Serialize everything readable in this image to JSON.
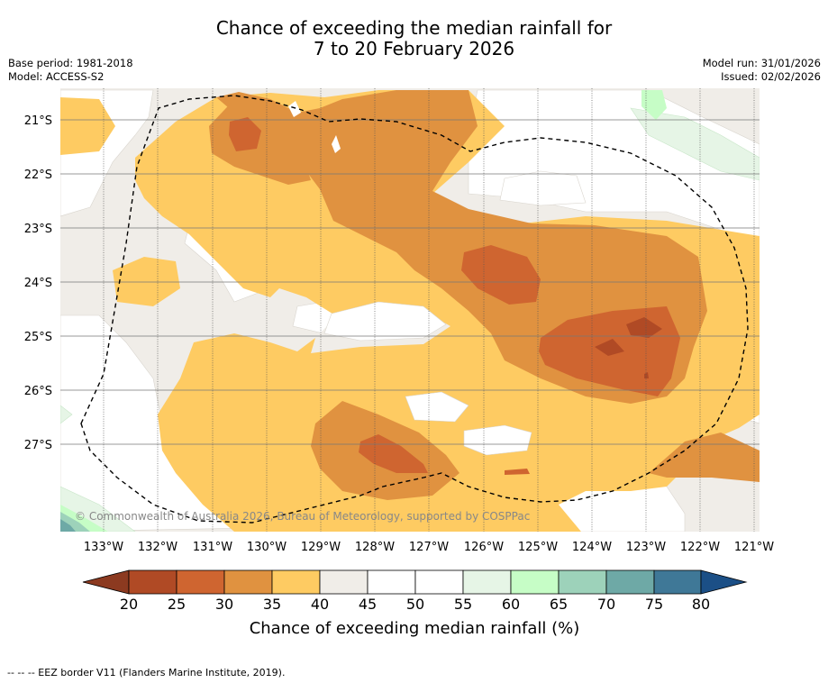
{
  "title_line1": "Chance of exceeding the median rainfall for",
  "title_line2": "7 to 20 February 2026",
  "base_period": "Base period: 1981-2018",
  "model": "Model: ACCESS-S2",
  "model_run": "Model run: 31/01/2026",
  "issued": "Issued: 02/02/2026",
  "copyright": "© Commonwealth of Australia 2026, Bureau of Meteorology, supported by COSPPac",
  "footnote": "--  --  -- EEZ border V11 (Flanders Marine Institute, 2019).",
  "axes": {
    "lat_labels": [
      "21°S",
      "22°S",
      "23°S",
      "24°S",
      "25°S",
      "26°S",
      "27°S"
    ],
    "lon_labels": [
      "133°W",
      "132°W",
      "131°W",
      "130°W",
      "129°W",
      "128°W",
      "127°W",
      "126°W",
      "125°W",
      "124°W",
      "123°W",
      "122°W",
      "121°W"
    ]
  },
  "legend": {
    "title": "Chance of exceeding median rainfall (%)",
    "ticks": [
      "20",
      "25",
      "30",
      "35",
      "40",
      "45",
      "50",
      "55",
      "60",
      "65",
      "70",
      "75",
      "80"
    ],
    "colors": [
      "#8c3a20",
      "#b04a25",
      "#cf6530",
      "#e09240",
      "#fecb62",
      "#f0ede8",
      "#ffffff",
      "#ffffff",
      "#e6f5e6",
      "#c6fdc6",
      "#9dd2ba",
      "#6ea9a6",
      "#3f7897",
      "#1b4f86"
    ]
  }
}
